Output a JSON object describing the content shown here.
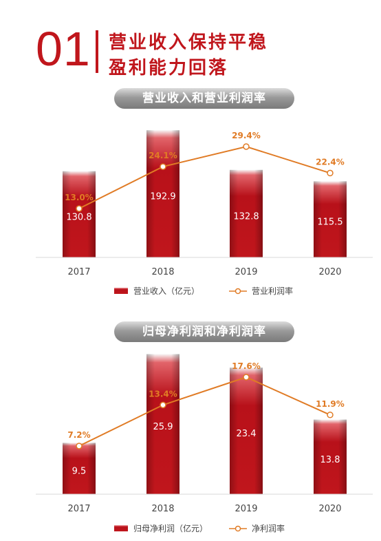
{
  "header": {
    "number": "01",
    "title_line1": "营业收入保持平稳",
    "title_line2": "盈利能力回落"
  },
  "colors": {
    "brand": "#c0161c",
    "line": "#e07b25"
  },
  "chart_data": [
    {
      "type": "bar",
      "title": "营业收入和营业利润率",
      "categories": [
        "2017",
        "2018",
        "2019",
        "2020"
      ],
      "series": [
        {
          "name": "营业收入（亿元）",
          "type": "bar",
          "values": [
            130.8,
            192.9,
            132.8,
            115.5
          ],
          "labels": [
            "130.8",
            "192.9",
            "132.8",
            "115.5"
          ]
        },
        {
          "name": "营业利润率",
          "type": "line",
          "values": [
            13.0,
            24.1,
            29.4,
            22.4
          ],
          "labels": [
            "13.0%",
            "24.1%",
            "29.4%",
            "22.4%"
          ]
        }
      ]
    },
    {
      "type": "bar",
      "title": "归母净利润和净利润率",
      "categories": [
        "2017",
        "2018",
        "2019",
        "2020"
      ],
      "series": [
        {
          "name": "归母净利润（亿元）",
          "type": "bar",
          "values": [
            9.5,
            25.9,
            23.4,
            13.8
          ],
          "labels": [
            "9.5",
            "25.9",
            "23.4",
            "13.8"
          ]
        },
        {
          "name": "净利润率",
          "type": "line",
          "values": [
            7.2,
            13.4,
            17.6,
            11.9
          ],
          "labels": [
            "7.2%",
            "13.4%",
            "17.6%",
            "11.9%"
          ]
        }
      ]
    }
  ]
}
